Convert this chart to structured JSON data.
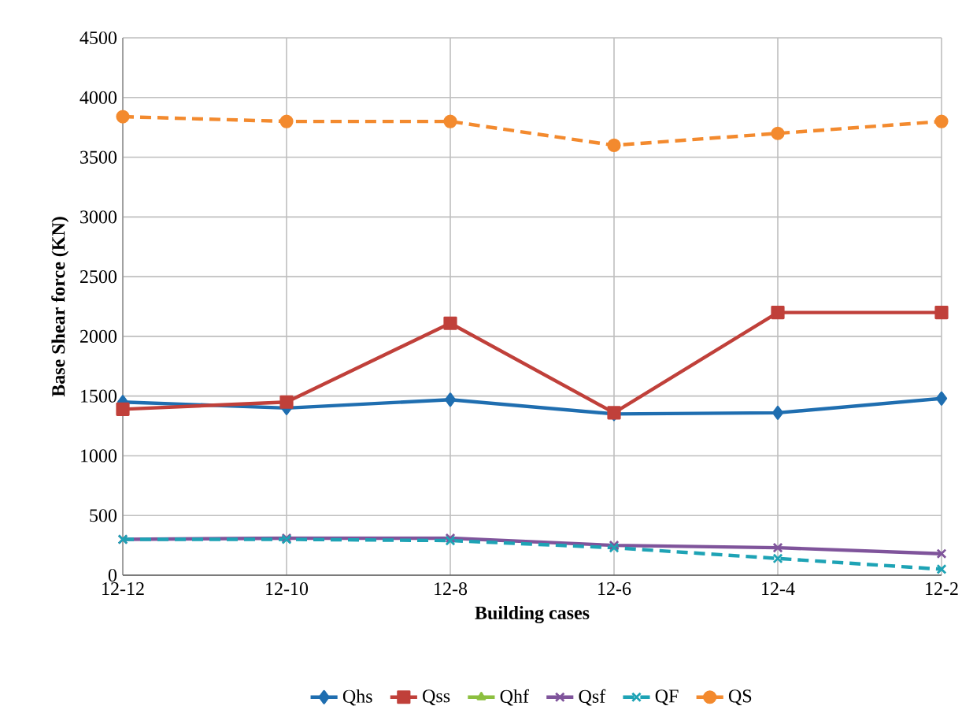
{
  "chart_data": {
    "type": "line",
    "xlabel": "Building cases",
    "ylabel": "Base Shear force (KN)",
    "categories": [
      "12-12",
      "12-10",
      "12-8",
      "12-6",
      "12-4",
      "12-2"
    ],
    "series": [
      {
        "name": "Qhs",
        "color": "#1f6eb0",
        "marker": "diamond",
        "line_style": "solid",
        "values": [
          1450,
          1400,
          1470,
          1350,
          1360,
          1480
        ]
      },
      {
        "name": "Qss",
        "color": "#c0403a",
        "marker": "square",
        "line_style": "solid",
        "values": [
          1390,
          1450,
          2110,
          1360,
          2200,
          2200
        ]
      },
      {
        "name": "Qhf",
        "color": "#8cbf3f",
        "marker": "triangle",
        "line_style": "solid",
        "values": [
          null,
          null,
          null,
          null,
          null,
          null
        ]
      },
      {
        "name": "Qsf",
        "color": "#7f549b",
        "marker": "cross",
        "line_style": "solid",
        "values": [
          300,
          310,
          310,
          250,
          230,
          180
        ]
      },
      {
        "name": "QF",
        "color": "#1ea3b5",
        "marker": "cross",
        "line_style": "dashed",
        "values": [
          300,
          300,
          290,
          230,
          140,
          50
        ]
      },
      {
        "name": "QS",
        "color": "#f38a2e",
        "marker": "circle",
        "line_style": "dashed",
        "values": [
          3840,
          3800,
          3800,
          3600,
          3700,
          3800
        ]
      }
    ],
    "ylim": [
      0,
      4500
    ],
    "yticks": [
      0,
      500,
      1000,
      1500,
      2000,
      2500,
      3000,
      3500,
      4000,
      4500
    ],
    "grid": true,
    "legend": "bottom"
  }
}
